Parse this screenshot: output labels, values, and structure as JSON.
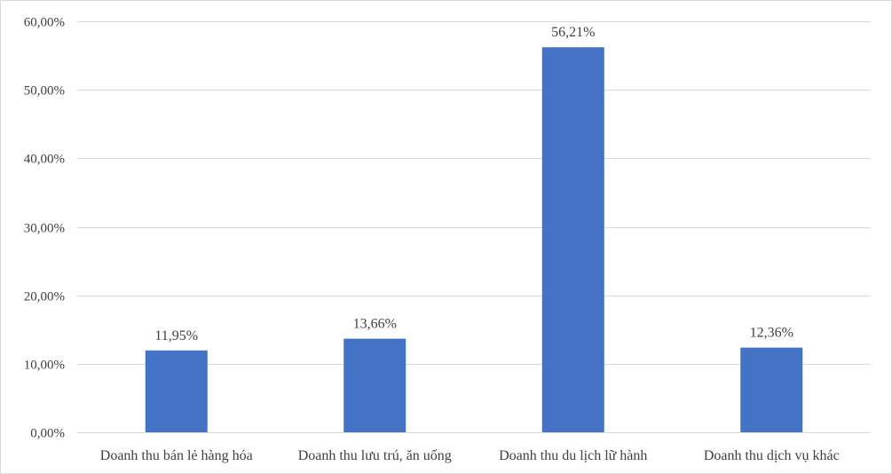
{
  "chart_data": {
    "type": "bar",
    "title": "",
    "xlabel": "",
    "ylabel": "",
    "categories": [
      "Doanh thu bán lẻ hàng hóa",
      "Doanh thu lưu trú, ăn uống",
      "Doanh thu du lịch lữ hành",
      "Doanh thu dịch vụ khác"
    ],
    "values": [
      11.95,
      13.66,
      56.21,
      12.36
    ],
    "value_labels": [
      "11,95%",
      "13,66%",
      "56,21%",
      "12,36%"
    ],
    "ylim": [
      0,
      60
    ],
    "yticks": [
      0,
      10,
      20,
      30,
      40,
      50,
      60
    ],
    "ytick_labels": [
      "0,00%",
      "10,00%",
      "20,00%",
      "30,00%",
      "40,00%",
      "50,00%",
      "60,00%"
    ],
    "grid": true,
    "legend": "none",
    "bar_color": "#4472C4"
  }
}
